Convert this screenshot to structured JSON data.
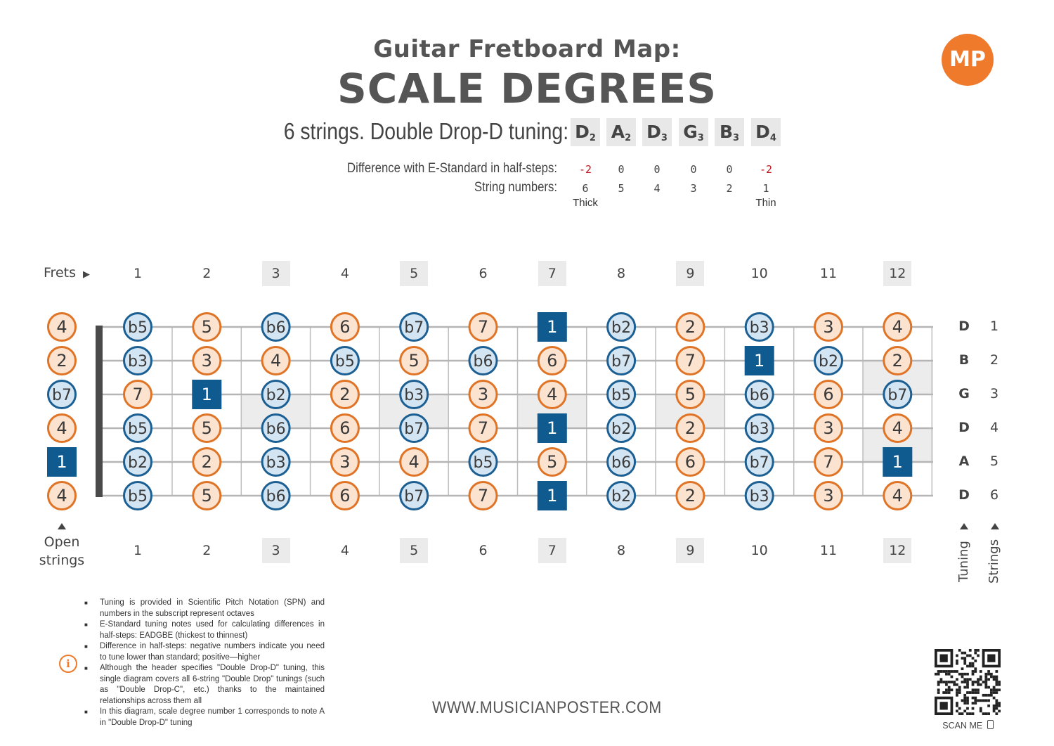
{
  "header": {
    "title_line1": "Guitar Fretboard Map:",
    "title_line2": "SCALE DEGREES",
    "logo_text": "MP"
  },
  "tuning": {
    "label": "6 strings. Double Drop-D tuning:",
    "notes": [
      {
        "note": "D",
        "octave": "2"
      },
      {
        "note": "A",
        "octave": "2"
      },
      {
        "note": "D",
        "octave": "3"
      },
      {
        "note": "G",
        "octave": "3"
      },
      {
        "note": "B",
        "octave": "3"
      },
      {
        "note": "D",
        "octave": "4"
      }
    ],
    "difference_label": "Difference with E-Standard in half-steps:",
    "differences": [
      "-2",
      "0",
      "0",
      "0",
      "0",
      "-2"
    ],
    "string_numbers_label": "String numbers:",
    "string_numbers": [
      "6",
      "5",
      "4",
      "3",
      "2",
      "1"
    ],
    "thick_label": "Thick",
    "thin_label": "Thin"
  },
  "fretboard": {
    "frets_label": "Frets",
    "fret_numbers": [
      "1",
      "2",
      "3",
      "4",
      "5",
      "6",
      "7",
      "8",
      "9",
      "10",
      "11",
      "12"
    ],
    "marked_frets": [
      3,
      5,
      7,
      9,
      12
    ],
    "open_strings_label_1": "Open",
    "open_strings_label_2": "strings",
    "tuning_label": "Tuning",
    "strings_label": "Strings",
    "right_tuning": [
      "D",
      "B",
      "G",
      "D",
      "A",
      "D"
    ],
    "right_strings": [
      "1",
      "2",
      "3",
      "4",
      "5",
      "6"
    ],
    "rows": [
      [
        "4",
        "b5",
        "5",
        "b6",
        "6",
        "b7",
        "7",
        "1",
        "b2",
        "2",
        "b3",
        "3",
        "4"
      ],
      [
        "2",
        "b3",
        "3",
        "4",
        "b5",
        "5",
        "b6",
        "6",
        "b7",
        "7",
        "1",
        "b2",
        "2"
      ],
      [
        "b7",
        "7",
        "1",
        "b2",
        "2",
        "b3",
        "3",
        "4",
        "b5",
        "5",
        "b6",
        "6",
        "b7"
      ],
      [
        "4",
        "b5",
        "5",
        "b6",
        "6",
        "b7",
        "7",
        "1",
        "b2",
        "2",
        "b3",
        "3",
        "4"
      ],
      [
        "1",
        "b2",
        "2",
        "b3",
        "3",
        "4",
        "b5",
        "5",
        "b6",
        "6",
        "b7",
        "7",
        "1"
      ],
      [
        "4",
        "b5",
        "5",
        "b6",
        "6",
        "b7",
        "7",
        "1",
        "b2",
        "2",
        "b3",
        "3",
        "4"
      ]
    ],
    "colors": {
      "root": "#0f5a8e",
      "natural_fill": "#fce3d0",
      "natural_stroke": "#e07426",
      "flat_fill": "#d3e4f2",
      "flat_stroke": "#1c5f93",
      "marker_fill": "#ececec"
    }
  },
  "footnotes": [
    "Tuning is provided in Scientific Pitch Notation (SPN) and numbers in the subscript represent octaves",
    "E-Standard tuning notes used for calculating differences in half-steps: EADGBE (thickest to thinnest)",
    "Difference in half-steps: negative numbers indicate you need to tune lower than standard; positive—higher",
    "Although the header specifies \"Double Drop-D\" tuning, this single diagram covers all 6-string \"Double Drop\" tunings (such as \"Double Drop-C\", etc.) thanks to the maintained relationships across them all",
    "In this diagram, scale degree number 1 corresponds to note A in \"Double Drop-D\" tuning"
  ],
  "website": "WWW.MUSICIANPOSTER.COM",
  "scan_label": "SCAN ME"
}
